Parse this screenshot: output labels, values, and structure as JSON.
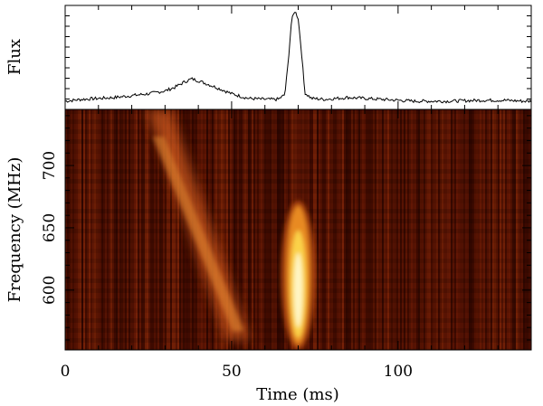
{
  "chart_data": [
    {
      "type": "line",
      "panel": "profile",
      "ylabel": "Flux",
      "xlim": [
        0,
        140
      ],
      "grid": false,
      "x_ms": [
        0,
        5,
        10,
        15,
        20,
        25,
        30,
        33,
        36,
        38,
        40,
        43,
        46,
        50,
        55,
        60,
        64,
        66,
        67,
        68,
        69,
        70,
        71,
        72,
        74,
        78,
        85,
        95,
        105,
        115,
        125,
        132,
        138
      ],
      "y_flux": [
        0.03,
        0.05,
        0.06,
        0.07,
        0.09,
        0.11,
        0.14,
        0.18,
        0.24,
        0.27,
        0.25,
        0.21,
        0.17,
        0.11,
        0.06,
        0.05,
        0.05,
        0.1,
        0.45,
        0.9,
        1.0,
        0.92,
        0.55,
        0.12,
        0.06,
        0.05,
        0.07,
        0.05,
        0.03,
        0.03,
        0.04,
        0.04,
        0.03
      ]
    },
    {
      "type": "heatmap",
      "panel": "dynamic-spectrum",
      "xlabel": "Time (ms)",
      "ylabel": "Frequency (MHz)",
      "xlim": [
        0,
        140
      ],
      "ylim": [
        552,
        745
      ],
      "x_ticks": [
        0,
        50,
        100
      ],
      "y_ticks": [
        600,
        650,
        700
      ],
      "colormap": [
        "#1a0000",
        "#4a0c00",
        "#7a1e05",
        "#a84010",
        "#d87a20",
        "#f6c040",
        "#fff8c8"
      ],
      "background_color": "#4a0f02",
      "features": [
        {
          "name": "main-pulse",
          "t_ms": 70,
          "f_lo_mhz": 552,
          "f_hi_mhz": 672,
          "width_ms": 2.4,
          "intensity": 1.0
        },
        {
          "name": "dispersed-sweep",
          "t_start_ms": 28,
          "f_start_mhz": 745,
          "t_end_ms": 52,
          "f_end_mhz": 560,
          "width_ms": 7,
          "intensity": 0.45
        }
      ]
    }
  ]
}
